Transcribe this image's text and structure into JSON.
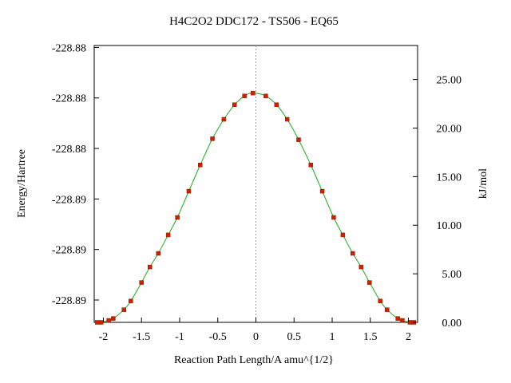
{
  "chart_data": {
    "type": "line",
    "title": "H4C2O2    DDC172 - TS506 - EQ65",
    "xlabel": "Reaction Path Length/A amu^{1/2}",
    "ylabel_left": "Energy/Hartree",
    "ylabel_right": "kJ/mol",
    "xlim": [
      -2.12,
      2.12
    ],
    "y_right_lim": [
      0.0,
      28.5
    ],
    "x_tick_labels": [
      "-2",
      "-1.5",
      "-1",
      "-0.5",
      "0",
      "0.5",
      "1",
      "1.5",
      "2"
    ],
    "x_tick_values": [
      -2,
      -1.5,
      -1,
      -0.5,
      0,
      0.5,
      1,
      1.5,
      2
    ],
    "left_tick_labels": [
      "-228.88",
      "-228.88",
      "-228.88",
      "-228.89",
      "-228.89",
      "-228.89"
    ],
    "left_tick_values_kjmol": [
      28.3,
      23.1,
      17.9,
      12.7,
      7.5,
      2.3
    ],
    "right_tick_labels": [
      "25.00",
      "20.00",
      "15.00",
      "10.00",
      "5.00",
      "0.00"
    ],
    "right_tick_values": [
      25,
      20,
      15,
      10,
      5,
      0
    ],
    "ts_marker_x": 0,
    "grid": false,
    "series": [
      {
        "line_color": "#22aa22",
        "marker_color": "#cc2200",
        "points": [
          [
            -2.08,
            0.0
          ],
          [
            -2.03,
            0.0
          ],
          [
            -1.93,
            0.2
          ],
          [
            -1.87,
            0.4
          ],
          [
            -1.73,
            1.3
          ],
          [
            -1.64,
            2.2
          ],
          [
            -1.5,
            4.1
          ],
          [
            -1.39,
            5.7
          ],
          [
            -1.28,
            7.1
          ],
          [
            -1.15,
            9.0
          ],
          [
            -1.03,
            10.8
          ],
          [
            -0.88,
            13.5
          ],
          [
            -0.73,
            16.2
          ],
          [
            -0.57,
            18.9
          ],
          [
            -0.42,
            20.9
          ],
          [
            -0.28,
            22.4
          ],
          [
            -0.15,
            23.3
          ],
          [
            -0.04,
            23.6
          ],
          [
            0.13,
            23.3
          ],
          [
            0.27,
            22.4
          ],
          [
            0.41,
            20.9
          ],
          [
            0.56,
            18.8
          ],
          [
            0.72,
            16.2
          ],
          [
            0.87,
            13.5
          ],
          [
            1.02,
            10.8
          ],
          [
            1.14,
            9.0
          ],
          [
            1.27,
            7.1
          ],
          [
            1.38,
            5.7
          ],
          [
            1.49,
            4.1
          ],
          [
            1.63,
            2.2
          ],
          [
            1.72,
            1.3
          ],
          [
            1.86,
            0.4
          ],
          [
            1.92,
            0.2
          ],
          [
            2.02,
            0.0
          ],
          [
            2.07,
            0.0
          ]
        ]
      }
    ]
  }
}
